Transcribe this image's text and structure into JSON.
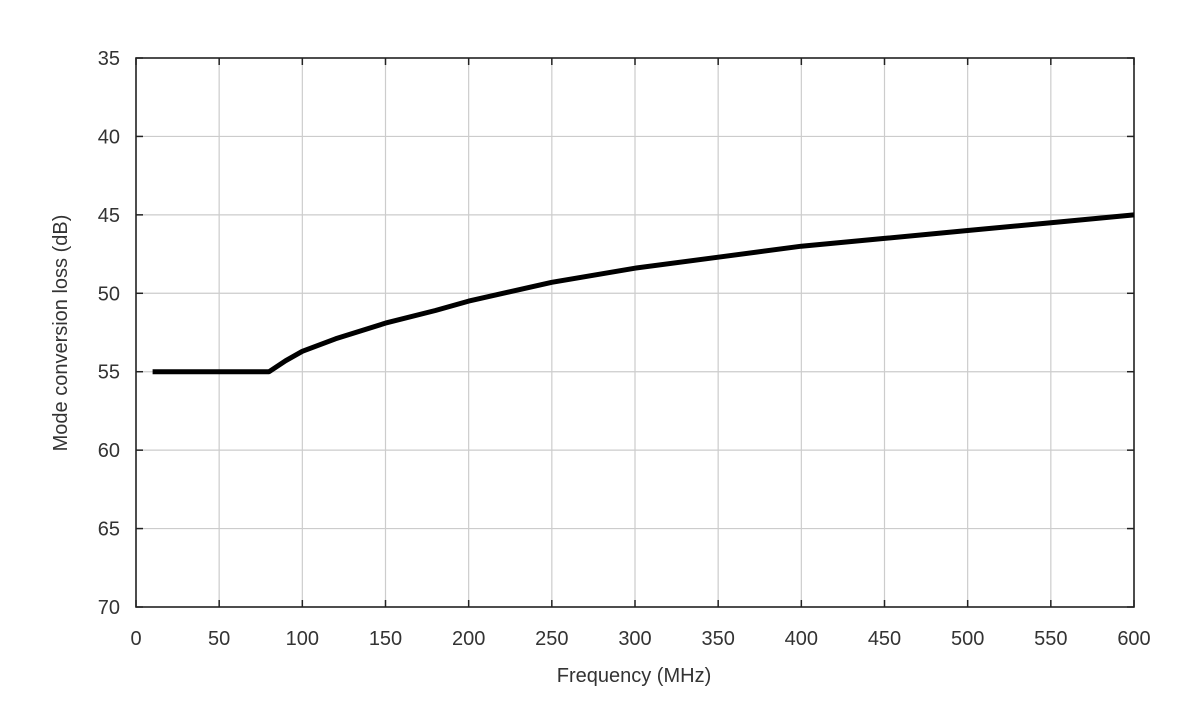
{
  "chart_data": {
    "type": "line",
    "title": "",
    "xlabel": "Frequency (MHz)",
    "ylabel": "Mode conversion loss (dB)",
    "xlim": [
      0,
      600
    ],
    "ylim": [
      35,
      70
    ],
    "y_inverted": true,
    "x_ticks": [
      0,
      50,
      100,
      150,
      200,
      250,
      300,
      350,
      400,
      450,
      500,
      550,
      600
    ],
    "y_ticks": [
      35,
      40,
      45,
      50,
      55,
      60,
      65,
      70
    ],
    "grid": true,
    "legend": "none",
    "colors": {
      "line": "#000000",
      "grid": "#cccccc",
      "frame": "#222222",
      "text": "#333333"
    },
    "series": [
      {
        "x": [
          10,
          80,
          90,
          100,
          120,
          150,
          180,
          200,
          250,
          300,
          350,
          400,
          450,
          500,
          550,
          600
        ],
        "y": [
          55,
          55,
          54.3,
          53.7,
          52.9,
          51.9,
          51.1,
          50.5,
          49.3,
          48.4,
          47.7,
          47.0,
          46.5,
          46.0,
          45.5,
          45.0
        ]
      }
    ]
  }
}
